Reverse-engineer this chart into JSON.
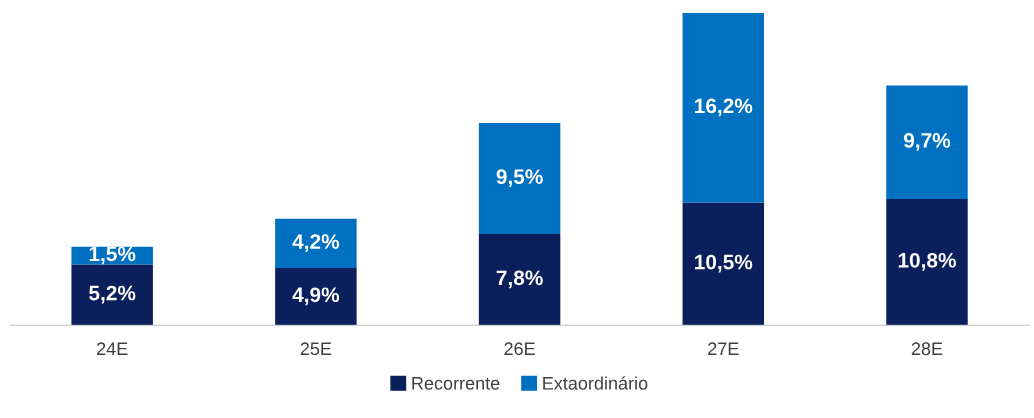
{
  "chart_data": {
    "type": "bar",
    "stacked": true,
    "categories": [
      "24E",
      "25E",
      "26E",
      "27E",
      "28E"
    ],
    "series": [
      {
        "name": "Recorrente",
        "color": "#0b1f5c",
        "values": [
          5.2,
          4.9,
          7.8,
          10.5,
          10.8
        ],
        "value_labels": [
          "5,2%",
          "4,9%",
          "7,8%",
          "10,5%",
          "10,8%"
        ]
      },
      {
        "name": "Extaordinário",
        "color": "#0070c0",
        "values": [
          1.5,
          4.2,
          9.5,
          16.2,
          9.7
        ],
        "value_labels": [
          "1,5%",
          "4,2%",
          "9,5%",
          "16,2%",
          "9,7%"
        ]
      }
    ],
    "legend": "bottom",
    "grid": false,
    "tick_labels": "x"
  }
}
